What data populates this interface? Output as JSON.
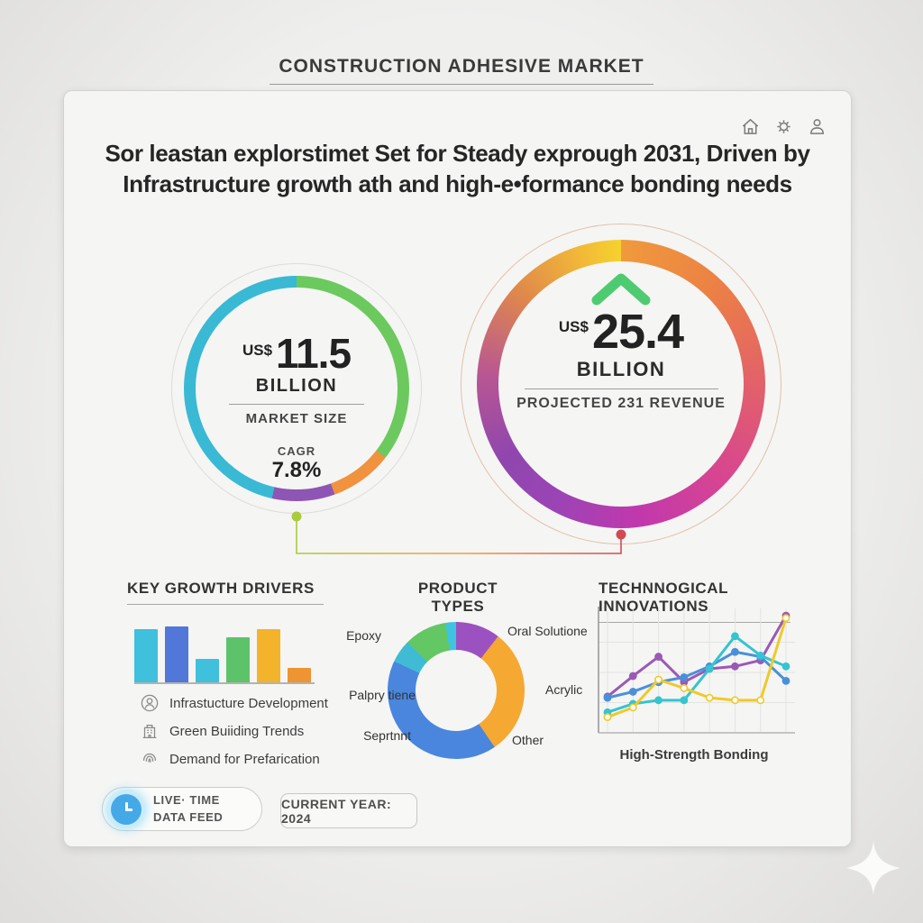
{
  "page_title": "CONSTRUCTION ADHESIVE MARKET",
  "header_icons": [
    "home-icon",
    "settings-gear-icon",
    "user-icon"
  ],
  "headline": {
    "line1": "Sor leastan explorstimet Set for Steady exprough 2031, Driven by",
    "line2": "Infrastructure growth ath and high-e•formance bonding needs"
  },
  "gauges": {
    "market": {
      "currency": "US$",
      "value": "11.5",
      "unit": "BILLION",
      "label": "MARKET SIZE",
      "cagr_label": "CAGR",
      "cagr_value": "7.8%"
    },
    "projected": {
      "currency": "US$",
      "value": "25.4",
      "unit": "BILLION",
      "label": "PROJECTED 231 REVENUE",
      "trend_icon": "up-chevron-icon",
      "trend_color": "#4ecb71"
    }
  },
  "sections": {
    "growth": {
      "title": "KEY GROWTH DRIVERS",
      "items": [
        {
          "icon": "person-circle-icon",
          "label": "Infrastucture Development"
        },
        {
          "icon": "building-icon",
          "label": "Green Buiiding Trends"
        },
        {
          "icon": "fingerprint-icon",
          "label": "Demand for Prefarication"
        }
      ]
    },
    "products": {
      "title": "PRODUCT TYPES",
      "callouts": [
        {
          "text": "Epoxy"
        },
        {
          "text": "Oral Solutione"
        },
        {
          "text": "Palpry tiene"
        },
        {
          "text": "Acrylic"
        },
        {
          "text": "Seprtnnt"
        },
        {
          "text": "Other"
        }
      ]
    },
    "tech": {
      "title": "TECHNNOGICAL INNOVATIONS",
      "caption": "High-Strength Bonding"
    }
  },
  "footer": {
    "live": {
      "line1": "LIVE· TIME",
      "line2": "DATA FEED",
      "icon": "clock-icon"
    },
    "year_label": "CURRENT YEAR: 2024"
  },
  "chart_data": [
    {
      "id": "market-gauge",
      "type": "pie",
      "style": "donut-ring",
      "title": "Market Size",
      "center_value": 11.5,
      "center_unit": "US$ billion",
      "cagr_pct": 7.8,
      "segments": [
        {
          "color": "#6cc95d",
          "pct": 35.5
        },
        {
          "color": "#f0923e",
          "pct": 9
        },
        {
          "color": "#8d56b5",
          "pct": 9
        },
        {
          "color": "#39b9d4",
          "pct": 46.5
        }
      ]
    },
    {
      "id": "projected-gauge",
      "type": "pie",
      "style": "gradient-ring",
      "title": "Projected 231 Revenue",
      "center_value": 25.4,
      "center_unit": "US$ billion",
      "gradient_stops": [
        {
          "color": "#f09a3c",
          "at": 0
        },
        {
          "color": "#ec8144",
          "at": 12
        },
        {
          "color": "#e2616a",
          "at": 25
        },
        {
          "color": "#d74591",
          "at": 37
        },
        {
          "color": "#c138ad",
          "at": 48
        },
        {
          "color": "#9b44b5",
          "at": 58
        },
        {
          "color": "#8f46ae",
          "at": 66
        },
        {
          "color": "#b85693",
          "at": 76
        },
        {
          "color": "#e08a4a",
          "at": 87
        },
        {
          "color": "#f2b838",
          "at": 95
        },
        {
          "color": "#f5d22f",
          "at": 100
        }
      ]
    },
    {
      "id": "growth-bars",
      "type": "bar",
      "title": "Key Growth Drivers",
      "values": [
        92,
        97,
        40,
        78,
        92,
        25
      ],
      "colors": [
        "#3fc0dc",
        "#5177d8",
        "#3fc0dc",
        "#5dc36b",
        "#f3b32b",
        "#ee9432"
      ],
      "ylim": [
        0,
        100
      ],
      "grid": false
    },
    {
      "id": "product-pie",
      "type": "pie",
      "style": "donut",
      "title": "Product Types",
      "start_deg": -9,
      "slices": [
        {
          "label": "(unlabeled sliver)",
          "color": "#3ec4e0",
          "pct": 2.5
        },
        {
          "label": "Oral Solutione",
          "color": "#9c51c0",
          "pct": 10.5
        },
        {
          "label": "Acrylic",
          "color": "#f5a832",
          "pct": 30
        },
        {
          "label": "Other",
          "color": "#4a86dd",
          "pct": 41.5
        },
        {
          "label": "Palpry tiene",
          "color": "#3fbcd4",
          "pct": 5.5
        },
        {
          "label": "Epoxy",
          "color": "#63c763",
          "pct": 10
        }
      ]
    },
    {
      "id": "tech-lines",
      "type": "line",
      "title": "Technological Innovations",
      "caption": "High-Strength Bonding",
      "x": [
        1,
        2,
        3,
        4,
        5,
        6,
        7,
        8
      ],
      "ylim": [
        0,
        100
      ],
      "grid": true,
      "legend": "none",
      "series": [
        {
          "name": "purple",
          "color": "#9b59b6",
          "values": [
            30,
            47,
            63,
            42,
            53,
            55,
            60,
            97
          ]
        },
        {
          "name": "blue",
          "color": "#4a90d9",
          "values": [
            29,
            34,
            42,
            46,
            55,
            67,
            63,
            43
          ]
        },
        {
          "name": "teal",
          "color": "#35c4d0",
          "values": [
            17,
            24,
            27,
            27,
            53,
            80,
            64,
            55
          ]
        },
        {
          "name": "yellow",
          "color": "#f0c929",
          "values": [
            13,
            21,
            44,
            37,
            29,
            27,
            27,
            95
          ],
          "marker_fill": "#ffffff"
        }
      ]
    }
  ]
}
